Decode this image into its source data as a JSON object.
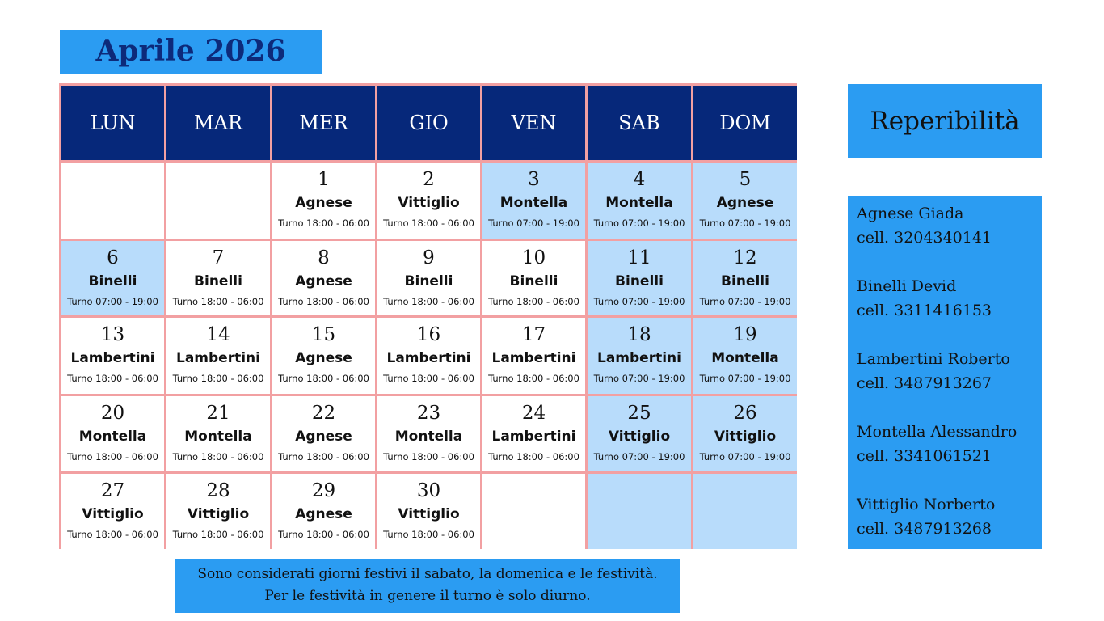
{
  "header": {
    "title": "Aprile 2026"
  },
  "calendar": {
    "weekdays": [
      "LUN",
      "MAR",
      "MER",
      "GIO",
      "VEN",
      "SAB",
      "DOM"
    ],
    "weeks": [
      [
        {
          "festivo": false
        },
        {
          "festivo": false
        },
        {
          "day": "1",
          "name": "Agnese",
          "shift": "Turno 18:00 - 06:00",
          "festivo": false
        },
        {
          "day": "2",
          "name": "Vittiglio",
          "shift": "Turno 18:00 - 06:00",
          "festivo": false
        },
        {
          "day": "3",
          "name": "Montella",
          "shift": "Turno 07:00 - 19:00",
          "festivo": true
        },
        {
          "day": "4",
          "name": "Montella",
          "shift": "Turno 07:00 - 19:00",
          "festivo": true
        },
        {
          "day": "5",
          "name": "Agnese",
          "shift": "Turno 07:00 - 19:00",
          "festivo": true
        }
      ],
      [
        {
          "day": "6",
          "name": "Binelli",
          "shift": "Turno 07:00 - 19:00",
          "festivo": true
        },
        {
          "day": "7",
          "name": "Binelli",
          "shift": "Turno 18:00 - 06:00",
          "festivo": false
        },
        {
          "day": "8",
          "name": "Agnese",
          "shift": "Turno 18:00 - 06:00",
          "festivo": false
        },
        {
          "day": "9",
          "name": "Binelli",
          "shift": "Turno 18:00 - 06:00",
          "festivo": false
        },
        {
          "day": "10",
          "name": "Binelli",
          "shift": "Turno 18:00 - 06:00",
          "festivo": false
        },
        {
          "day": "11",
          "name": "Binelli",
          "shift": "Turno 07:00 - 19:00",
          "festivo": true
        },
        {
          "day": "12",
          "name": "Binelli",
          "shift": "Turno 07:00 - 19:00",
          "festivo": true
        }
      ],
      [
        {
          "day": "13",
          "name": "Lambertini",
          "shift": "Turno 18:00 - 06:00",
          "festivo": false
        },
        {
          "day": "14",
          "name": "Lambertini",
          "shift": "Turno 18:00 - 06:00",
          "festivo": false
        },
        {
          "day": "15",
          "name": "Agnese",
          "shift": "Turno 18:00 - 06:00",
          "festivo": false
        },
        {
          "day": "16",
          "name": "Lambertini",
          "shift": "Turno 18:00 - 06:00",
          "festivo": false
        },
        {
          "day": "17",
          "name": "Lambertini",
          "shift": "Turno 18:00 - 06:00",
          "festivo": false
        },
        {
          "day": "18",
          "name": "Lambertini",
          "shift": "Turno 07:00 - 19:00",
          "festivo": true
        },
        {
          "day": "19",
          "name": "Montella",
          "shift": "Turno 07:00 - 19:00",
          "festivo": true
        }
      ],
      [
        {
          "day": "20",
          "name": "Montella",
          "shift": "Turno 18:00 - 06:00",
          "festivo": false
        },
        {
          "day": "21",
          "name": "Montella",
          "shift": "Turno 18:00 - 06:00",
          "festivo": false
        },
        {
          "day": "22",
          "name": "Agnese",
          "shift": "Turno 18:00 - 06:00",
          "festivo": false
        },
        {
          "day": "23",
          "name": "Montella",
          "shift": "Turno 18:00 - 06:00",
          "festivo": false
        },
        {
          "day": "24",
          "name": "Lambertini",
          "shift": "Turno 18:00 - 06:00",
          "festivo": false
        },
        {
          "day": "25",
          "name": "Vittiglio",
          "shift": "Turno 07:00 - 19:00",
          "festivo": true
        },
        {
          "day": "26",
          "name": "Vittiglio",
          "shift": "Turno 07:00 - 19:00",
          "festivo": true
        }
      ],
      [
        {
          "day": "27",
          "name": "Vittiglio",
          "shift": "Turno 18:00 - 06:00",
          "festivo": false
        },
        {
          "day": "28",
          "name": "Vittiglio",
          "shift": "Turno 18:00 - 06:00",
          "festivo": false
        },
        {
          "day": "29",
          "name": "Agnese",
          "shift": "Turno 18:00 - 06:00",
          "festivo": false
        },
        {
          "day": "30",
          "name": "Vittiglio",
          "shift": "Turno 18:00 - 06:00",
          "festivo": false
        },
        {
          "festivo": false
        },
        {
          "festivo": true
        },
        {
          "festivo": true
        }
      ]
    ]
  },
  "sidebar": {
    "title": "Reperibilità",
    "contacts": [
      {
        "name": "Agnese Giada",
        "phone": "cell. 3204340141"
      },
      {
        "name": "Binelli Devid",
        "phone": "cell. 3311416153"
      },
      {
        "name": "Lambertini Roberto",
        "phone": "cell. 3487913267"
      },
      {
        "name": "Montella Alessandro",
        "phone": "cell. 3341061521"
      },
      {
        "name": "Vittiglio Norberto",
        "phone": "cell. 3487913268"
      }
    ]
  },
  "note": {
    "lines": [
      "Sono considerati giorni festivi il sabato, la domenica e le festività.",
      "Per le festività in genere il turno è solo diurno."
    ]
  }
}
